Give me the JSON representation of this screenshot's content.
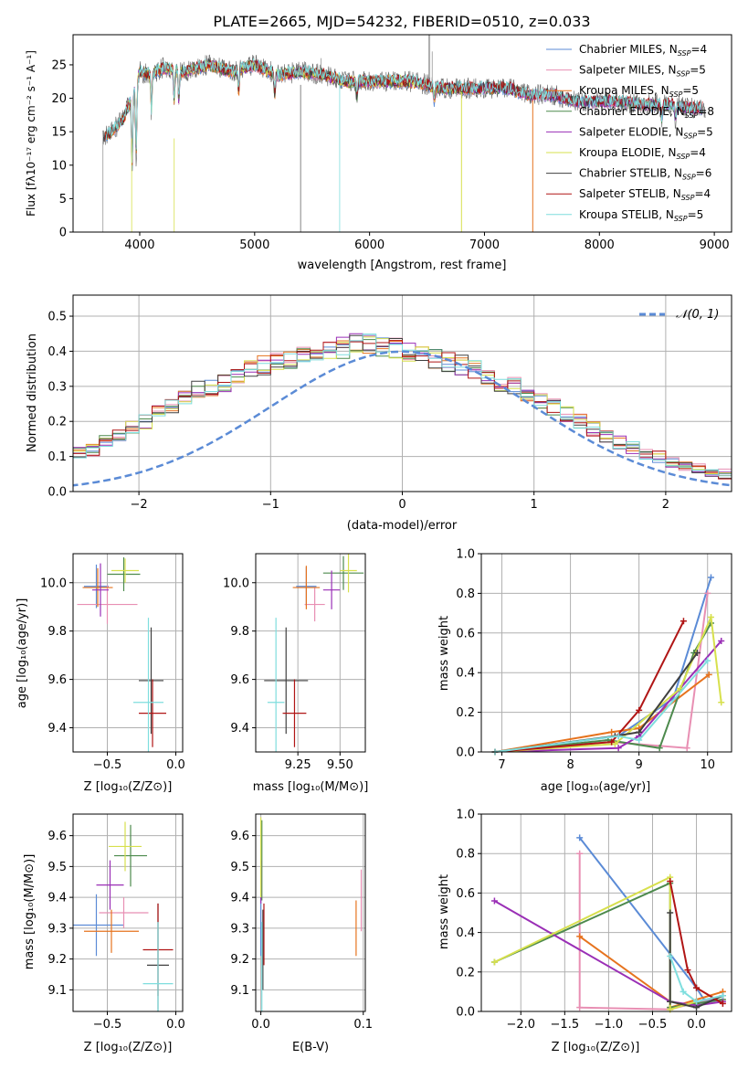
{
  "title": "PLATE=2665, MJD=54232, FIBERID=0510, z=0.033",
  "colors": {
    "models": [
      "#5b8bd6",
      "#e88fb3",
      "#e6731e",
      "#4d8a4d",
      "#9a2fb6",
      "#d7e04d",
      "#404040",
      "#b01515",
      "#7fdede"
    ],
    "gaussian": "#5b8bd6",
    "grid": "#b0b0b0"
  },
  "chart_data": [
    {
      "id": "spectrum",
      "type": "line",
      "xlabel": "wavelength [Angstrom, rest frame]",
      "ylabel": "Flux [fλ10⁻¹⁷ erg cm⁻² s⁻¹ A⁻¹]",
      "xlim": [
        3420,
        9150
      ],
      "ylim": [
        0,
        29.5
      ],
      "xticks": [
        4000,
        5000,
        6000,
        7000,
        8000,
        9000
      ],
      "yticks": [
        0,
        5,
        10,
        15,
        20,
        25
      ],
      "grid": false,
      "legend_position": "upper right",
      "legend": [
        {
          "label": "Chabrier MILES, N",
          "sub": "SSP",
          "tail": "=4"
        },
        {
          "label": "Salpeter MILES, N",
          "sub": "SSP",
          "tail": "=5"
        },
        {
          "label": "Kroupa MILES, N",
          "sub": "SSP",
          "tail": "=5"
        },
        {
          "label": "Chabrier ELODIE, N",
          "sub": "SSP",
          "tail": "=8"
        },
        {
          "label": "Salpeter ELODIE, N",
          "sub": "SSP",
          "tail": "=5"
        },
        {
          "label": "Kroupa ELODIE, N",
          "sub": "SSP",
          "tail": "=4"
        },
        {
          "label": "Chabrier STELIB, N",
          "sub": "SSP",
          "tail": "=6"
        },
        {
          "label": "Salpeter STELIB, N",
          "sub": "SSP",
          "tail": "=4"
        },
        {
          "label": "Kroupa STELIB, N",
          "sub": "SSP",
          "tail": "=5"
        }
      ],
      "continuum": [
        [
          3680,
          14
        ],
        [
          3760,
          15
        ],
        [
          3860,
          17
        ],
        [
          3950,
          21
        ],
        [
          4000,
          24
        ],
        [
          4100,
          23.5
        ],
        [
          4200,
          24.5
        ],
        [
          4400,
          24
        ],
        [
          4600,
          25
        ],
        [
          4800,
          24
        ],
        [
          5000,
          25
        ],
        [
          5200,
          23.5
        ],
        [
          5400,
          24
        ],
        [
          5600,
          23.5
        ],
        [
          5800,
          22.5
        ],
        [
          6000,
          22.5
        ],
        [
          6200,
          22.5
        ],
        [
          6400,
          22.5
        ],
        [
          6600,
          21.5
        ],
        [
          6800,
          21.5
        ],
        [
          7000,
          21.5
        ],
        [
          7200,
          21.5
        ],
        [
          7400,
          20.5
        ],
        [
          7600,
          20.5
        ],
        [
          7800,
          19.5
        ],
        [
          8000,
          19.5
        ],
        [
          8200,
          19.5
        ],
        [
          8400,
          19
        ],
        [
          8600,
          19
        ],
        [
          8800,
          18.5
        ],
        [
          8900,
          18.5
        ]
      ],
      "model_ranges": [
        [
          3700,
          8900
        ],
        [
          3700,
          8900
        ],
        [
          3700,
          7420
        ],
        [
          3700,
          8900
        ],
        [
          3900,
          8900
        ],
        [
          3900,
          6800
        ],
        [
          3680,
          8900
        ],
        [
          3700,
          8900
        ],
        [
          3700,
          8900
        ]
      ]
    },
    {
      "id": "residuals",
      "type": "histogram",
      "xlabel": "(data-model)/error",
      "ylabel": "Normed distribution",
      "xlim": [
        -2.5,
        2.5
      ],
      "ylim": [
        0,
        0.56
      ],
      "xticks": [
        -2,
        -1,
        0,
        1,
        2
      ],
      "yticks": [
        0.0,
        0.1,
        0.2,
        0.3,
        0.4,
        0.5
      ],
      "grid": true,
      "bin_width": 0.1,
      "legend": "𝒩(0, 1)",
      "legend_position": "upper right",
      "gaussian": {
        "mu": 0,
        "sigma": 1
      },
      "samples_per_series": 9,
      "base_profile": [
        0.03,
        0.035,
        0.035,
        0.035,
        0.04,
        0.045,
        0.06,
        0.065,
        0.075,
        0.09,
        0.11,
        0.12,
        0.14,
        0.155,
        0.18,
        0.2,
        0.225,
        0.24,
        0.27,
        0.29,
        0.3,
        0.31,
        0.33,
        0.35,
        0.36,
        0.37,
        0.38,
        0.39,
        0.4,
        0.41,
        0.41,
        0.42,
        0.42,
        0.41,
        0.41,
        0.4,
        0.39,
        0.38,
        0.37,
        0.36,
        0.35,
        0.33,
        0.31,
        0.3,
        0.28,
        0.26,
        0.24,
        0.22,
        0.2,
        0.18,
        0.16,
        0.14,
        0.125,
        0.11,
        0.1,
        0.085,
        0.075,
        0.065,
        0.055,
        0.05,
        0.045,
        0.04,
        0.035,
        0.03,
        0.028,
        0.025,
        0.022,
        0.02,
        0.02,
        0.02
      ]
    },
    {
      "id": "age-vs-Z",
      "type": "scatter",
      "xlabel": "Z [log₁₀(Z/Z⊙)]",
      "ylabel": "age  [log₁₀(age/yr)]",
      "xlim": [
        -0.75,
        0.05
      ],
      "ylim": [
        9.3,
        10.12
      ],
      "xticks": [
        -0.5,
        0.0
      ],
      "yticks": [
        9.4,
        9.6,
        9.8,
        10.0
      ],
      "grid": true,
      "points": [
        {
          "x": -0.58,
          "y": 9.985,
          "xerr": 0.09,
          "yerr": 0.09
        },
        {
          "x": -0.5,
          "y": 9.91,
          "xerr": 0.22,
          "yerr": 0.08
        },
        {
          "x": -0.57,
          "y": 9.98,
          "xerr": 0.11,
          "yerr": 0.08
        },
        {
          "x": -0.38,
          "y": 10.035,
          "xerr": 0.12,
          "yerr": 0.07
        },
        {
          "x": -0.55,
          "y": 9.97,
          "xerr": 0.06,
          "yerr": 0.11
        },
        {
          "x": -0.37,
          "y": 10.05,
          "xerr": 0.1,
          "yerr": 0.05
        },
        {
          "x": -0.18,
          "y": 9.595,
          "xerr": 0.09,
          "yerr": 0.22
        },
        {
          "x": -0.17,
          "y": 9.46,
          "xerr": 0.1,
          "yerr": 0.14
        },
        {
          "x": -0.2,
          "y": 9.505,
          "xerr": 0.11,
          "yerr": 0.35
        }
      ]
    },
    {
      "id": "age-vs-mass",
      "type": "scatter",
      "xlabel": "mass [log₁₀(M/M⊙)]",
      "ylabel": "",
      "xlim": [
        9.0,
        9.65
      ],
      "ylim": [
        9.3,
        10.12
      ],
      "xticks": [
        9.25,
        9.5
      ],
      "yticks": [
        9.4,
        9.6,
        9.8,
        10.0
      ],
      "grid": true,
      "points": [
        {
          "x": 9.3,
          "y": 9.985,
          "xerr": 0.06,
          "yerr": 0.08
        },
        {
          "x": 9.35,
          "y": 9.91,
          "xerr": 0.06,
          "yerr": 0.07
        },
        {
          "x": 9.3,
          "y": 9.98,
          "xerr": 0.08,
          "yerr": 0.09
        },
        {
          "x": 9.52,
          "y": 10.04,
          "xerr": 0.12,
          "yerr": 0.07
        },
        {
          "x": 9.45,
          "y": 9.97,
          "xerr": 0.05,
          "yerr": 0.08
        },
        {
          "x": 9.55,
          "y": 10.05,
          "xerr": 0.05,
          "yerr": 0.09
        },
        {
          "x": 9.18,
          "y": 9.595,
          "xerr": 0.13,
          "yerr": 0.22
        },
        {
          "x": 9.23,
          "y": 9.46,
          "xerr": 0.07,
          "yerr": 0.14
        },
        {
          "x": 9.12,
          "y": 9.505,
          "xerr": 0.05,
          "yerr": 0.35
        }
      ]
    },
    {
      "id": "weight-vs-age",
      "type": "line",
      "xlabel": "age  [log₁₀(age/yr)]",
      "ylabel": "mass weight",
      "xlim": [
        6.7,
        10.35
      ],
      "ylim": [
        0.0,
        1.0
      ],
      "xticks": [
        7,
        8,
        9,
        10
      ],
      "yticks": [
        0.0,
        0.2,
        0.4,
        0.6,
        0.8,
        1.0
      ],
      "grid": true,
      "series": [
        {
          "x": [
            6.9,
            8.7,
            9.5,
            10.05
          ],
          "y": [
            0.0,
            0.08,
            0.27,
            0.88
          ]
        },
        {
          "x": [
            6.9,
            8.6,
            9.7,
            10.0
          ],
          "y": [
            0.0,
            0.05,
            0.02,
            0.8
          ]
        },
        {
          "x": [
            6.9,
            8.6,
            9.0,
            10.02
          ],
          "y": [
            0.0,
            0.1,
            0.12,
            0.39
          ]
        },
        {
          "x": [
            6.9,
            8.55,
            9.3,
            9.8,
            10.05
          ],
          "y": [
            0.0,
            0.06,
            0.02,
            0.5,
            0.65
          ]
        },
        {
          "x": [
            6.9,
            8.7,
            9.0,
            10.2
          ],
          "y": [
            0.0,
            0.02,
            0.08,
            0.56
          ]
        },
        {
          "x": [
            6.9,
            8.65,
            9.6,
            10.05,
            10.2
          ],
          "y": [
            0.0,
            0.04,
            0.32,
            0.68,
            0.25
          ]
        },
        {
          "x": [
            6.9,
            8.65,
            9.0,
            9.85
          ],
          "y": [
            0.0,
            0.08,
            0.1,
            0.5
          ]
        },
        {
          "x": [
            6.9,
            8.6,
            9.0,
            9.65
          ],
          "y": [
            0.0,
            0.05,
            0.21,
            0.66
          ]
        },
        {
          "x": [
            6.9,
            8.7,
            9.0,
            10.0
          ],
          "y": [
            0.0,
            0.08,
            0.06,
            0.46
          ]
        }
      ]
    },
    {
      "id": "mass-vs-Z",
      "type": "scatter",
      "xlabel": "Z [log₁₀(Z/Z⊙)]",
      "ylabel": "mass [log₁₀(M/M⊙)]",
      "xlim": [
        -0.75,
        0.05
      ],
      "ylim": [
        9.03,
        9.67
      ],
      "xticks": [
        -0.5,
        0.0
      ],
      "yticks": [
        9.1,
        9.2,
        9.3,
        9.4,
        9.5,
        9.6
      ],
      "grid": true,
      "points": [
        {
          "x": -0.58,
          "y": 9.31,
          "xerr": 0.2,
          "yerr": 0.1
        },
        {
          "x": -0.38,
          "y": 9.35,
          "xerr": 0.18,
          "yerr": 0.05
        },
        {
          "x": -0.47,
          "y": 9.29,
          "xerr": 0.2,
          "yerr": 0.07
        },
        {
          "x": -0.33,
          "y": 9.535,
          "xerr": 0.12,
          "yerr": 0.1
        },
        {
          "x": -0.48,
          "y": 9.44,
          "xerr": 0.1,
          "yerr": 0.08
        },
        {
          "x": -0.37,
          "y": 9.565,
          "xerr": 0.12,
          "yerr": 0.08
        },
        {
          "x": -0.13,
          "y": 9.18,
          "xerr": 0.08,
          "yerr": 0.2
        },
        {
          "x": -0.13,
          "y": 9.23,
          "xerr": 0.11,
          "yerr": 0.15
        },
        {
          "x": -0.13,
          "y": 9.12,
          "xerr": 0.11,
          "yerr": 0.2
        }
      ]
    },
    {
      "id": "mass-vs-EBV",
      "type": "scatter",
      "xlabel": "E(B-V)",
      "ylabel": "",
      "xlim": [
        -0.005,
        0.102
      ],
      "ylim": [
        9.03,
        9.67
      ],
      "xticks": [
        0.0,
        0.1
      ],
      "yticks": [
        9.1,
        9.2,
        9.3,
        9.4,
        9.5,
        9.6
      ],
      "grid": true,
      "points": [
        {
          "x": 0.0,
          "y": 9.31,
          "xerr": 0.0,
          "yerr": 0.1
        },
        {
          "x": 0.098,
          "y": 9.39,
          "xerr": 0.0,
          "yerr": 0.1
        },
        {
          "x": 0.093,
          "y": 9.3,
          "xerr": 0.0,
          "yerr": 0.09
        },
        {
          "x": 0.001,
          "y": 9.52,
          "xerr": 0.0,
          "yerr": 0.13
        },
        {
          "x": 0.0,
          "y": 9.45,
          "xerr": 0.0,
          "yerr": 0.07
        },
        {
          "x": 0.0,
          "y": 9.53,
          "xerr": 0.0,
          "yerr": 0.13
        },
        {
          "x": 0.002,
          "y": 9.23,
          "xerr": 0.0,
          "yerr": 0.13
        },
        {
          "x": 0.003,
          "y": 9.28,
          "xerr": 0.0,
          "yerr": 0.1
        },
        {
          "x": 0.001,
          "y": 9.12,
          "xerr": 0.0,
          "yerr": 0.2
        }
      ]
    },
    {
      "id": "weight-vs-Z",
      "type": "line",
      "xlabel": "Z [log₁₀(Z/Z⊙)]",
      "ylabel": "mass weight",
      "xlim": [
        -2.45,
        0.4
      ],
      "ylim": [
        0.0,
        1.0
      ],
      "xticks": [
        -2.0,
        -1.5,
        -1.0,
        -0.5,
        0.0
      ],
      "yticks": [
        0.0,
        0.2,
        0.4,
        0.6,
        0.8,
        1.0
      ],
      "grid": true,
      "series": [
        {
          "x": [
            -1.33,
            0.0,
            0.1,
            0.3
          ],
          "y": [
            0.88,
            0.12,
            0.05,
            0.08
          ]
        },
        {
          "x": [
            -1.33,
            -1.33,
            -0.3,
            0.3
          ],
          "y": [
            0.8,
            0.02,
            0.01,
            0.08
          ]
        },
        {
          "x": [
            -1.33,
            -0.3,
            -0.3,
            0.3
          ],
          "y": [
            0.38,
            0.05,
            0.02,
            0.1
          ]
        },
        {
          "x": [
            -2.3,
            -0.3,
            -0.3,
            0.3
          ],
          "y": [
            0.25,
            0.65,
            0.02,
            0.06
          ]
        },
        {
          "x": [
            -2.3,
            -0.3,
            0.0,
            0.3
          ],
          "y": [
            0.56,
            0.05,
            0.03,
            0.05
          ]
        },
        {
          "x": [
            -2.3,
            -0.3,
            -0.3,
            0.0
          ],
          "y": [
            0.25,
            0.68,
            0.01,
            0.05
          ]
        },
        {
          "x": [
            -0.3,
            -0.3,
            0.0,
            0.3
          ],
          "y": [
            0.5,
            0.05,
            0.02,
            0.08
          ]
        },
        {
          "x": [
            -0.3,
            -0.1,
            0.0,
            0.3
          ],
          "y": [
            0.66,
            0.21,
            0.12,
            0.04
          ]
        },
        {
          "x": [
            -0.3,
            -0.15,
            0.0,
            0.3
          ],
          "y": [
            0.28,
            0.1,
            0.05,
            0.08
          ]
        }
      ]
    }
  ]
}
